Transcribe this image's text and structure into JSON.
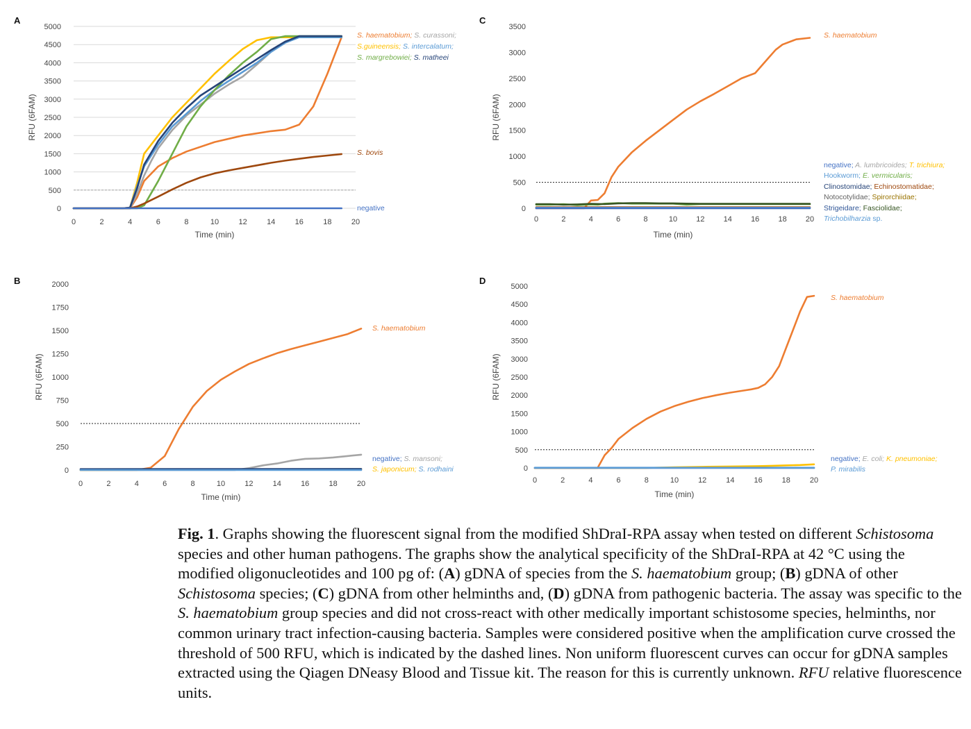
{
  "panels": {
    "A": {
      "letter": "A"
    },
    "B": {
      "letter": "B"
    },
    "C": {
      "letter": "C"
    },
    "D": {
      "letter": "D"
    }
  },
  "caption": {
    "label": "Fig. 1",
    "s1": ". Graphs showing the fluorescent signal from the modified ShDraI-RPA assay when tested on different ",
    "i1": "Schistosoma",
    "s2": " species and other human pathogens. The graphs show the analytical specificity of the ShDraI-RPA at 42 °C using the modified oligonucleotides and 100 pg of: (",
    "bA": "A",
    "s3": ") gDNA of species from the ",
    "i2": "S. haematobium",
    "s4": " group; (",
    "bB": "B",
    "s5": ") gDNA of other ",
    "i3": "Schistosoma",
    "s6": " species; (",
    "bC": "C",
    "s7": ") gDNA from other helminths and, (",
    "bD": "D",
    "s8": ") gDNA from pathogenic bacteria. The assay was specific to the ",
    "i4": "S. haematobium",
    "s9": " group species and did not cross-react with other medically important schistosome species, helminths, nor common urinary tract infection-causing bacteria. Samples were considered positive when the amplification curve crossed the threshold of 500 RFU, which is indicated by the dashed lines. Non uniform fluorescent curves can occur for gDNA samples extracted using the Qiagen DNeasy Blood and Tissue kit. The reason for this is currently unknown. ",
    "i5": "RFU",
    "s10": " relative fluorescence units."
  },
  "chart_data": [
    {
      "panel": "A",
      "type": "line",
      "xlabel": "Time (min)",
      "ylabel": "RFU (6FAM)",
      "xlim": [
        0,
        20
      ],
      "ylim": [
        0,
        5000
      ],
      "xticks": [
        "0",
        "2",
        "4",
        "6",
        "8",
        "10",
        "12",
        "14",
        "16",
        "18",
        "20"
      ],
      "yticks": [
        "0",
        "500",
        "1000",
        "1500",
        "2000",
        "2500",
        "3000",
        "3500",
        "4000",
        "4500",
        "5000"
      ],
      "threshold": 500,
      "grid": true,
      "colors": {
        "orange": "#ED7D31",
        "grey": "#A5A5A5",
        "yellow": "#FFC000",
        "blue": "#5B9BD5",
        "green": "#70AD47",
        "navy": "#264478",
        "brown": "#9E480E",
        "negative": "#4472C4"
      },
      "series": [
        {
          "color": "#ED7D31",
          "x": [
            0,
            3.5,
            4,
            4.5,
            5,
            6,
            7,
            8,
            10,
            12,
            14,
            15,
            16,
            17,
            18,
            19
          ],
          "y": [
            0,
            0,
            0,
            300,
            750,
            1150,
            1380,
            1560,
            1820,
            2000,
            2120,
            2160,
            2300,
            2800,
            3700,
            4700
          ]
        },
        {
          "color": "#A5A5A5",
          "x": [
            0,
            3.5,
            4,
            4.5,
            5,
            5.5,
            6,
            7,
            8,
            9,
            10,
            11,
            12,
            13,
            14,
            15,
            16,
            17,
            18,
            19
          ],
          "y": [
            0,
            0,
            0,
            400,
            900,
            1300,
            1650,
            2150,
            2550,
            2850,
            3150,
            3400,
            3620,
            3950,
            4300,
            4550,
            4720,
            4720,
            4720,
            4720
          ]
        },
        {
          "color": "#FFC000",
          "x": [
            0,
            3.5,
            4,
            4.5,
            5,
            6,
            7,
            8,
            9,
            10,
            11,
            12,
            13,
            14,
            15,
            16,
            17,
            18,
            19
          ],
          "y": [
            0,
            0,
            20,
            700,
            1500,
            2000,
            2500,
            2900,
            3300,
            3700,
            4050,
            4380,
            4620,
            4700,
            4700,
            4700,
            4700,
            4700,
            4700
          ]
        },
        {
          "color": "#5B9BD5",
          "x": [
            0,
            3.5,
            4,
            4.5,
            5,
            6,
            7,
            8,
            9,
            10,
            11,
            12,
            13,
            14,
            15,
            16,
            17,
            18,
            19
          ],
          "y": [
            0,
            0,
            20,
            600,
            1150,
            1750,
            2250,
            2600,
            2950,
            3250,
            3500,
            3750,
            4000,
            4300,
            4550,
            4700,
            4700,
            4700,
            4700
          ]
        },
        {
          "color": "#70AD47",
          "x": [
            0,
            3.5,
            4,
            4.5,
            5,
            6,
            7,
            8,
            9,
            10,
            11,
            12,
            13,
            14,
            15,
            16,
            17,
            18,
            19
          ],
          "y": [
            0,
            0,
            0,
            0,
            80,
            750,
            1500,
            2250,
            2800,
            3250,
            3650,
            4000,
            4300,
            4650,
            4730,
            4730,
            4730,
            4730,
            4730
          ]
        },
        {
          "color": "#264478",
          "x": [
            0,
            3.5,
            4,
            4.5,
            5,
            6,
            7,
            8,
            9,
            10,
            11,
            12,
            13,
            14,
            15,
            16,
            17,
            18,
            19
          ],
          "y": [
            0,
            0,
            20,
            550,
            1200,
            1850,
            2350,
            2750,
            3100,
            3350,
            3600,
            3850,
            4100,
            4350,
            4580,
            4730,
            4730,
            4730,
            4730
          ]
        },
        {
          "color": "#9E480E",
          "x": [
            0,
            4,
            4.5,
            5,
            6,
            7,
            8,
            9,
            10,
            11,
            12,
            13,
            14,
            15,
            16,
            17,
            18,
            19
          ],
          "y": [
            0,
            0,
            50,
            130,
            320,
            520,
            700,
            850,
            960,
            1040,
            1110,
            1180,
            1250,
            1310,
            1360,
            1410,
            1450,
            1490
          ]
        },
        {
          "color": "#4472C4",
          "x": [
            0,
            19
          ],
          "y": [
            0,
            0
          ]
        }
      ],
      "legend": [
        {
          "parts": [
            {
              "text": "S. haematobium;",
              "color": "#ED7D31"
            },
            {
              "text": " S. curassoni;",
              "color": "#A5A5A5"
            }
          ]
        },
        {
          "parts": [
            {
              "text": "S.guineensis;",
              "color": "#FFC000"
            },
            {
              "text": " S. intercalatum;",
              "color": "#5B9BD5"
            }
          ]
        },
        {
          "parts": [
            {
              "text": "S. margrebowiei;",
              "color": "#70AD47"
            },
            {
              "text": " S. matheei",
              "color": "#264478"
            }
          ]
        },
        {
          "parts": [
            {
              "text": "S. bovis",
              "color": "#9E480E"
            }
          ]
        },
        {
          "parts": [
            {
              "text": "negative",
              "color": "#4472C4",
              "plain": true
            }
          ]
        }
      ]
    },
    {
      "panel": "B",
      "type": "line",
      "xlabel": "Time (min)",
      "ylabel": "RFU (6FAM)",
      "xlim": [
        0,
        20
      ],
      "ylim": [
        0,
        2000
      ],
      "xticks": [
        "0",
        "2",
        "4",
        "6",
        "8",
        "10",
        "12",
        "14",
        "16",
        "18",
        "20"
      ],
      "yticks": [
        "0",
        "250",
        "500",
        "750",
        "1000",
        "1250",
        "1500",
        "1750",
        "2000"
      ],
      "threshold": 500,
      "grid": false,
      "series": [
        {
          "color": "#ED7D31",
          "x": [
            0,
            4,
            5,
            6,
            7,
            8,
            9,
            10,
            11,
            12,
            13,
            14,
            15,
            16,
            17,
            18,
            19,
            20
          ],
          "y": [
            0,
            0,
            25,
            150,
            440,
            680,
            850,
            970,
            1060,
            1140,
            1200,
            1255,
            1300,
            1340,
            1380,
            1420,
            1460,
            1520
          ]
        },
        {
          "color": "#A5A5A5",
          "x": [
            0,
            11,
            12,
            13,
            14,
            15,
            16,
            17,
            18,
            19,
            20
          ],
          "y": [
            0,
            0,
            20,
            50,
            70,
            100,
            120,
            125,
            135,
            150,
            165
          ]
        },
        {
          "color": "#FFC000",
          "x": [
            0,
            20
          ],
          "y": [
            0,
            10
          ]
        },
        {
          "color": "#264478",
          "x": [
            0,
            20
          ],
          "y": [
            10,
            12
          ]
        },
        {
          "color": "#5B9BD5",
          "x": [
            0,
            20
          ],
          "y": [
            0,
            0
          ]
        }
      ],
      "legend": [
        {
          "parts": [
            {
              "text": "negative;",
              "color": "#4472C4",
              "plain": true
            },
            {
              "text": " S. mansoni;",
              "color": "#A5A5A5"
            }
          ]
        },
        {
          "parts": [
            {
              "text": "S. japonicum;",
              "color": "#FFC000"
            },
            {
              "text": " S. rodhaini",
              "color": "#5B9BD5"
            }
          ]
        },
        {
          "parts": [
            {
              "text": "S. haematobium",
              "color": "#ED7D31"
            }
          ]
        }
      ]
    },
    {
      "panel": "C",
      "type": "line",
      "xlabel": "Time (min)",
      "ylabel": "RFU (6FAM)",
      "xlim": [
        0,
        20
      ],
      "ylim": [
        0,
        3500
      ],
      "xticks": [
        "0",
        "2",
        "4",
        "6",
        "8",
        "10",
        "12",
        "14",
        "16",
        "18",
        "20"
      ],
      "yticks": [
        "0",
        "500",
        "1000",
        "1500",
        "2000",
        "2500",
        "3000",
        "3500"
      ],
      "threshold": 500,
      "grid": false,
      "series": [
        {
          "color": "#ED7D31",
          "x": [
            0,
            3.5,
            4,
            4.5,
            5,
            5.5,
            6,
            7,
            8,
            9,
            10,
            11,
            12,
            13,
            14,
            15,
            16,
            17,
            17.5,
            18,
            19,
            20
          ],
          "y": [
            0,
            0,
            150,
            160,
            290,
            600,
            800,
            1080,
            1300,
            1500,
            1700,
            1900,
            2060,
            2200,
            2350,
            2500,
            2600,
            2900,
            3050,
            3150,
            3250,
            3280
          ]
        },
        {
          "color": "#70AD47",
          "x": [
            0,
            1,
            2,
            3,
            4,
            4.5,
            5,
            6,
            7,
            8,
            9,
            10,
            11,
            12,
            20
          ],
          "y": [
            70,
            70,
            80,
            60,
            75,
            70,
            90,
            100,
            90,
            90,
            90,
            90,
            70,
            80,
            80
          ]
        },
        {
          "color": "#375623",
          "x": [
            0,
            1,
            2,
            3,
            4,
            5,
            6,
            7,
            8,
            9,
            10,
            11,
            12,
            20
          ],
          "y": [
            80,
            80,
            70,
            75,
            85,
            80,
            95,
            100,
            100,
            95,
            95,
            90,
            85,
            85
          ]
        },
        {
          "color": "#9E480E",
          "x": [
            0,
            20
          ],
          "y": [
            20,
            20
          ]
        },
        {
          "color": "#5B9BD5",
          "x": [
            0,
            20
          ],
          "y": [
            10,
            10
          ]
        },
        {
          "color": "#4472C4",
          "x": [
            0,
            20
          ],
          "y": [
            0,
            0
          ]
        }
      ],
      "legend": [
        {
          "parts": [
            {
              "text": "S. haematobium",
              "color": "#ED7D31"
            }
          ]
        },
        {
          "parts": [
            {
              "text": "negative;",
              "color": "#4472C4",
              "plain": true
            },
            {
              "text": " A. lumbricoides;",
              "color": "#A5A5A5"
            },
            {
              "text": " T. trichiura;",
              "color": "#FFC000"
            }
          ]
        },
        {
          "parts": [
            {
              "text": "Hookworm;",
              "color": "#5B9BD5",
              "plain": true
            },
            {
              "text": " E. vermicularis;",
              "color": "#70AD47"
            }
          ]
        },
        {
          "parts": [
            {
              "text": "Clinostomidae;",
              "color": "#264478",
              "plain": true
            },
            {
              "text": " Echinostomatidae;",
              "color": "#9E480E",
              "plain": true
            }
          ]
        },
        {
          "parts": [
            {
              "text": "Notocotylidae;",
              "color": "#636363",
              "plain": true
            },
            {
              "text": " Spirorchiidae;",
              "color": "#997300",
              "plain": true
            }
          ]
        },
        {
          "parts": [
            {
              "text": "Strigeidare;",
              "color": "#2F5597",
              "plain": true
            },
            {
              "text": " Fasciolidae;",
              "color": "#375623",
              "plain": true
            }
          ]
        },
        {
          "parts": [
            {
              "text": "Trichobilharzia",
              "color": "#5B9BD5"
            },
            {
              "text": " sp.",
              "color": "#5B9BD5",
              "plain": true
            }
          ]
        }
      ]
    },
    {
      "panel": "D",
      "type": "line",
      "xlabel": "Time (min)",
      "ylabel": "RFU (6FAM)",
      "xlim": [
        0,
        20
      ],
      "ylim": [
        0,
        5000
      ],
      "xticks": [
        "0",
        "2",
        "4",
        "6",
        "8",
        "10",
        "12",
        "14",
        "16",
        "18",
        "20"
      ],
      "yticks": [
        "0",
        "500",
        "1000",
        "1500",
        "2000",
        "2500",
        "3000",
        "3500",
        "4000",
        "4500",
        "5000"
      ],
      "threshold": 500,
      "grid": false,
      "series": [
        {
          "color": "#ED7D31",
          "x": [
            0,
            4.5,
            5,
            5.5,
            6,
            7,
            8,
            9,
            10,
            11,
            12,
            13,
            14,
            15,
            15.5,
            16,
            16.5,
            17,
            17.5,
            18,
            18.5,
            19,
            19.5,
            20
          ],
          "y": [
            0,
            0,
            350,
            550,
            800,
            1100,
            1350,
            1550,
            1700,
            1820,
            1920,
            2000,
            2070,
            2130,
            2160,
            2200,
            2300,
            2500,
            2800,
            3300,
            3800,
            4300,
            4700,
            4730
          ]
        },
        {
          "color": "#FFC000",
          "x": [
            0,
            8,
            10,
            12,
            14,
            16,
            17,
            18,
            19,
            20
          ],
          "y": [
            0,
            0,
            20,
            30,
            40,
            50,
            60,
            70,
            80,
            100
          ]
        },
        {
          "color": "#4472C4",
          "x": [
            0,
            20
          ],
          "y": [
            0,
            0
          ]
        },
        {
          "color": "#5B9BD5",
          "x": [
            0,
            20
          ],
          "y": [
            5,
            5
          ]
        }
      ],
      "legend": [
        {
          "parts": [
            {
              "text": "S. haematobium",
              "color": "#ED7D31"
            }
          ]
        },
        {
          "parts": [
            {
              "text": "negative;",
              "color": "#4472C4",
              "plain": true
            },
            {
              "text": " E. coli;",
              "color": "#A5A5A5"
            },
            {
              "text": " K. pneumoniae;",
              "color": "#FFC000"
            }
          ]
        },
        {
          "parts": [
            {
              "text": "P. mirabilis",
              "color": "#5B9BD5"
            }
          ]
        }
      ]
    }
  ]
}
